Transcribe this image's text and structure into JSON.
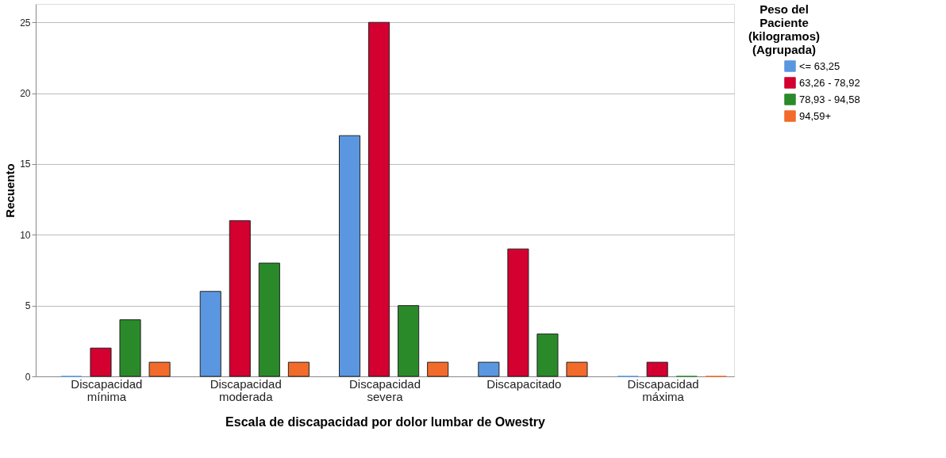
{
  "chart_data": {
    "type": "bar",
    "xlabel": "Escala de discapacidad por dolor lumbar de Owestry",
    "ylabel": "Recuento",
    "legend_title": "Peso del Paciente (kilogramos) (Agrupada)",
    "categories": [
      "Discapacidad mínima",
      "Discapacidad moderada",
      "Discapacidad severa",
      "Discapacitado",
      "Discapacidad máxima"
    ],
    "series": [
      {
        "name": "<= 63,25",
        "color": "#5b97e0",
        "values": [
          0,
          6,
          17,
          1,
          0
        ]
      },
      {
        "name": "63,26 - 78,92",
        "color": "#d30030",
        "values": [
          2,
          11,
          25,
          9,
          1
        ]
      },
      {
        "name": "78,93 - 94,58",
        "color": "#2a8a2a",
        "values": [
          4,
          8,
          5,
          3,
          0
        ]
      },
      {
        "name": "94,59+",
        "color": "#f26b2a",
        "values": [
          1,
          1,
          1,
          1,
          0
        ]
      }
    ],
    "ylim": [
      0,
      26.3
    ],
    "yticks": [
      0,
      5,
      10,
      15,
      20,
      25
    ],
    "grid": "y",
    "legend": "right"
  }
}
